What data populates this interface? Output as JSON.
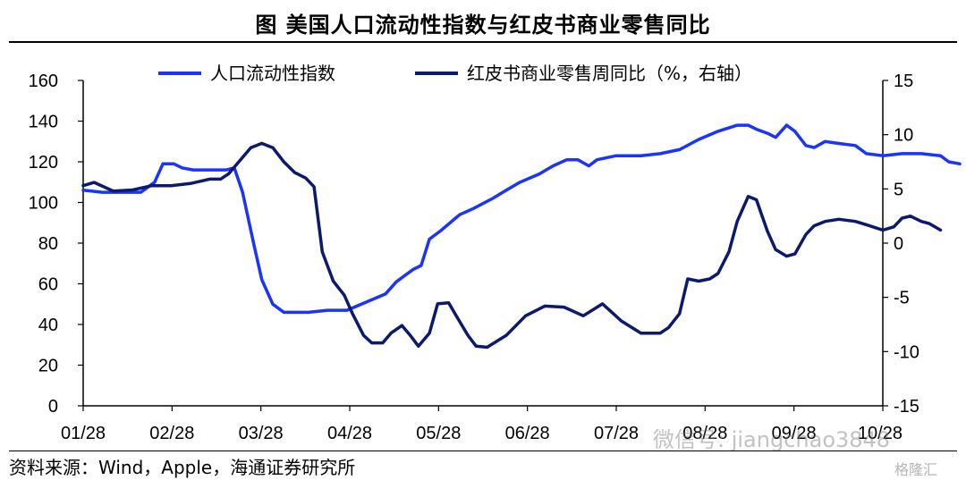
{
  "title": "图  美国人口流动性指数与红皮书商业零售同比",
  "source": "资料来源：Wind，Apple，海通证券研究所",
  "watermark": {
    "wechat": "微信号: jiangchao3848",
    "logo": "格隆汇"
  },
  "colors": {
    "mobility": "#1a33ff",
    "redbook": "#0b1a6e",
    "axis": "#000000"
  },
  "chart_data": {
    "type": "line",
    "title": "",
    "x_tick_labels": [
      "01/28",
      "02/28",
      "03/28",
      "04/28",
      "05/28",
      "06/28",
      "07/28",
      "08/28",
      "09/28",
      "10/28"
    ],
    "x_domain": [
      "01/13",
      "10/31"
    ],
    "y_left": {
      "ticks": [
        0,
        20,
        40,
        60,
        80,
        100,
        120,
        140,
        160
      ],
      "ylim": [
        0,
        160
      ]
    },
    "y_right": {
      "ticks": [
        -15,
        -10,
        -5,
        0,
        5,
        10,
        15
      ],
      "ylim": [
        -15,
        15
      ]
    },
    "legend": {
      "placement": "top-center"
    },
    "series": [
      {
        "name": "人口流动性指数",
        "axis": "left",
        "color": "#1a33ff",
        "points": [
          [
            "01/13",
            106
          ],
          [
            "01/20",
            105
          ],
          [
            "01/27",
            105
          ],
          [
            "02/03",
            105
          ],
          [
            "02/08",
            110
          ],
          [
            "02/11",
            119
          ],
          [
            "02/15",
            119
          ],
          [
            "02/18",
            117
          ],
          [
            "02/22",
            116
          ],
          [
            "03/01",
            116
          ],
          [
            "03/06",
            116
          ],
          [
            "03/09",
            117
          ],
          [
            "03/12",
            105
          ],
          [
            "03/16",
            80
          ],
          [
            "03/19",
            62
          ],
          [
            "03/23",
            50
          ],
          [
            "03/27",
            46
          ],
          [
            "04/05",
            46
          ],
          [
            "04/12",
            47
          ],
          [
            "04/19",
            47
          ],
          [
            "04/26",
            51
          ],
          [
            "05/03",
            55
          ],
          [
            "05/07",
            61
          ],
          [
            "05/10",
            64
          ],
          [
            "05/13",
            67
          ],
          [
            "05/16",
            69
          ],
          [
            "05/19",
            82
          ],
          [
            "05/23",
            86
          ],
          [
            "05/30",
            94
          ],
          [
            "06/04",
            97
          ],
          [
            "06/11",
            102
          ],
          [
            "06/16",
            106
          ],
          [
            "06/21",
            110
          ],
          [
            "06/28",
            114
          ],
          [
            "07/03",
            118
          ],
          [
            "07/08",
            121
          ],
          [
            "07/12",
            121
          ],
          [
            "07/16",
            118
          ],
          [
            "07/19",
            121
          ],
          [
            "07/26",
            123
          ],
          [
            "08/04",
            123
          ],
          [
            "08/11",
            124
          ],
          [
            "08/18",
            126
          ],
          [
            "08/25",
            131
          ],
          [
            "09/01",
            135
          ],
          [
            "09/08",
            138
          ],
          [
            "09/12",
            138
          ],
          [
            "09/15",
            136
          ],
          [
            "09/19",
            134
          ],
          [
            "09/22",
            132
          ],
          [
            "09/26",
            138
          ],
          [
            "09/29",
            135
          ],
          [
            "10/03",
            128
          ],
          [
            "10/06",
            127
          ],
          [
            "10/10",
            130
          ],
          [
            "10/15",
            129
          ],
          [
            "10/21",
            128
          ],
          [
            "10/25",
            124
          ],
          [
            "10/31",
            123
          ],
          [
            "11/07",
            124
          ],
          [
            "11/14",
            124
          ],
          [
            "11/21",
            123
          ],
          [
            "11/24",
            120
          ],
          [
            "11/28",
            119
          ]
        ]
      },
      {
        "name": "红皮书商业零售周同比（%，右轴）",
        "axis": "right",
        "color": "#0b1a6e",
        "points": [
          [
            "01/13",
            5.3
          ],
          [
            "01/17",
            5.6
          ],
          [
            "01/24",
            4.8
          ],
          [
            "01/31",
            4.9
          ],
          [
            "02/07",
            5.3
          ],
          [
            "02/14",
            5.3
          ],
          [
            "02/21",
            5.5
          ],
          [
            "02/28",
            5.9
          ],
          [
            "03/04",
            5.9
          ],
          [
            "03/07",
            6.4
          ],
          [
            "03/11",
            7.6
          ],
          [
            "03/15",
            8.8
          ],
          [
            "03/19",
            9.2
          ],
          [
            "03/23",
            8.8
          ],
          [
            "03/27",
            7.5
          ],
          [
            "03/31",
            6.5
          ],
          [
            "04/04",
            6.0
          ],
          [
            "04/07",
            5.2
          ],
          [
            "04/10",
            -0.8
          ],
          [
            "04/14",
            -3.5
          ],
          [
            "04/18",
            -4.8
          ],
          [
            "04/21",
            -6.5
          ],
          [
            "04/25",
            -8.5
          ],
          [
            "04/28",
            -9.2
          ],
          [
            "05/02",
            -9.2
          ],
          [
            "05/05",
            -8.3
          ],
          [
            "05/09",
            -7.6
          ],
          [
            "05/12",
            -8.5
          ],
          [
            "05/15",
            -9.5
          ],
          [
            "05/19",
            -8.3
          ],
          [
            "05/22",
            -5.6
          ],
          [
            "05/26",
            -5.5
          ],
          [
            "05/29",
            -6.8
          ],
          [
            "06/02",
            -8.5
          ],
          [
            "06/05",
            -9.5
          ],
          [
            "06/09",
            -9.6
          ],
          [
            "06/16",
            -8.5
          ],
          [
            "06/23",
            -6.7
          ],
          [
            "06/30",
            -5.8
          ],
          [
            "07/07",
            -5.9
          ],
          [
            "07/14",
            -6.7
          ],
          [
            "07/21",
            -5.6
          ],
          [
            "07/28",
            -7.2
          ],
          [
            "08/04",
            -8.3
          ],
          [
            "08/11",
            -8.3
          ],
          [
            "08/14",
            -7.8
          ],
          [
            "08/18",
            -6.5
          ],
          [
            "08/21",
            -3.3
          ],
          [
            "08/25",
            -3.5
          ],
          [
            "08/29",
            -3.3
          ],
          [
            "09/01",
            -2.8
          ],
          [
            "09/05",
            -0.8
          ],
          [
            "09/08",
            2.0
          ],
          [
            "09/12",
            4.3
          ],
          [
            "09/15",
            4.0
          ],
          [
            "09/19",
            1.1
          ],
          [
            "09/22",
            -0.6
          ],
          [
            "09/26",
            -1.2
          ],
          [
            "09/29",
            -1.0
          ],
          [
            "10/03",
            0.8
          ],
          [
            "10/06",
            1.6
          ],
          [
            "10/10",
            2.0
          ],
          [
            "10/15",
            2.2
          ],
          [
            "10/21",
            2.0
          ],
          [
            "10/25",
            1.7
          ],
          [
            "10/31",
            1.2
          ],
          [
            "11/04",
            1.5
          ],
          [
            "11/07",
            2.3
          ],
          [
            "11/10",
            2.5
          ],
          [
            "11/14",
            2.0
          ],
          [
            "11/17",
            1.8
          ],
          [
            "11/21",
            1.2
          ]
        ]
      }
    ]
  }
}
